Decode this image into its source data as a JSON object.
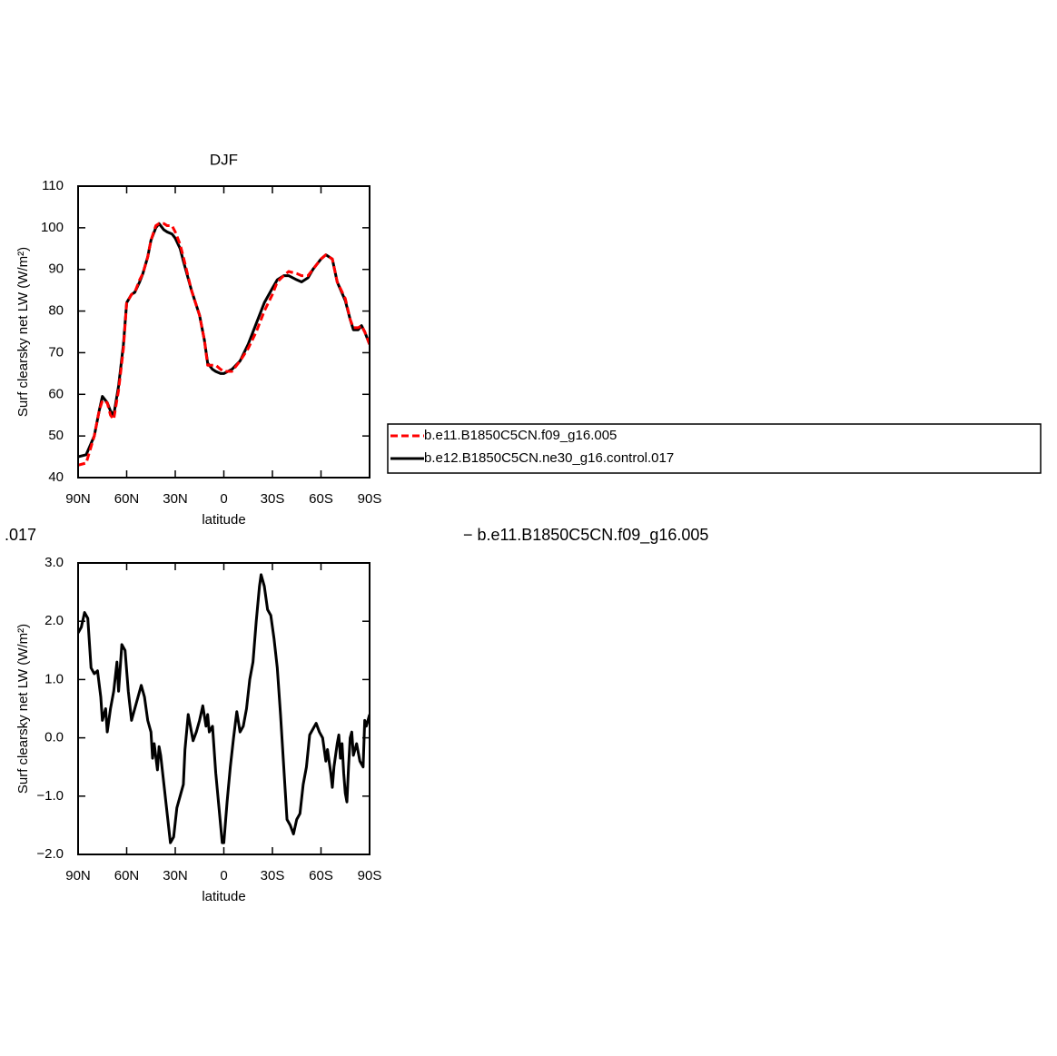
{
  "chart_data": [
    {
      "type": "line",
      "title": "DJF",
      "xlabel": "latitude",
      "ylabel": "Surf clearsky net LW (W/m²)",
      "xlim": [
        90,
        -90
      ],
      "ylim": [
        40,
        110
      ],
      "xticks": [
        {
          "value": 90,
          "label": "90N"
        },
        {
          "value": 60,
          "label": "60N"
        },
        {
          "value": 30,
          "label": "30N"
        },
        0,
        {
          "value": -30,
          "label": "30S"
        },
        {
          "value": -60,
          "label": "60S"
        },
        {
          "value": -90,
          "label": "90S"
        }
      ],
      "yticks": [
        40,
        50,
        60,
        70,
        80,
        90,
        100,
        110
      ],
      "legend_position": "right",
      "x": [
        90,
        85,
        80,
        77,
        75,
        72,
        70,
        68,
        65,
        62,
        60,
        57,
        55,
        52,
        50,
        47,
        45,
        42,
        40,
        37,
        35,
        32,
        30,
        27,
        25,
        20,
        15,
        12,
        10,
        7,
        5,
        2,
        0,
        -5,
        -10,
        -15,
        -20,
        -25,
        -30,
        -33,
        -37,
        -40,
        -45,
        -48,
        -52,
        -55,
        -60,
        -63,
        -67,
        -70,
        -75,
        -78,
        -80,
        -83,
        -85,
        -87,
        -90
      ],
      "series": [
        {
          "name": "b.e11.B1850C5CN.f09_g16.005",
          "color": "#ff0000",
          "dash": true,
          "values": [
            43,
            43.5,
            50,
            56,
            58.5,
            58,
            55,
            54,
            61,
            71,
            82,
            84,
            84.5,
            87.5,
            89,
            93,
            97,
            100.5,
            101,
            101,
            100.5,
            100.5,
            99,
            96,
            93,
            85,
            79,
            73,
            67,
            67,
            67,
            66,
            65.5,
            65.5,
            68,
            71,
            75,
            80,
            84,
            87,
            88.5,
            89.5,
            89,
            88.5,
            88.5,
            90,
            92.5,
            93.5,
            92.5,
            87,
            83,
            78,
            76,
            76,
            76.5,
            75,
            72
          ]
        },
        {
          "name": "b.e12.B1850C5CN.ne30_g16.control.017",
          "color": "#000000",
          "dash": false,
          "values": [
            45,
            45.5,
            50,
            56,
            59.5,
            58,
            56,
            55,
            62,
            72,
            82,
            84,
            84.5,
            87,
            89,
            93,
            97,
            100,
            101,
            99.5,
            99,
            98.5,
            97.5,
            95,
            92,
            85,
            79,
            73,
            67.5,
            66,
            65.5,
            65,
            65,
            66,
            68,
            72,
            77,
            82,
            85.5,
            87.5,
            88.5,
            88.5,
            87.5,
            87,
            88,
            90,
            92.5,
            93.5,
            92.5,
            87,
            82.5,
            78,
            75.5,
            75.5,
            76.5,
            75,
            72
          ]
        }
      ]
    },
    {
      "type": "line",
      "title_left": ".017",
      "title_right": "− b.e11.B1850C5CN.f09_g16.005",
      "xlabel": "latitude",
      "ylabel": "Surf clearsky net LW (W/m²)",
      "xlim": [
        90,
        -90
      ],
      "ylim": [
        -2.0,
        3.0
      ],
      "xticks": [
        {
          "value": 90,
          "label": "90N"
        },
        {
          "value": 60,
          "label": "60N"
        },
        {
          "value": 30,
          "label": "30N"
        },
        0,
        {
          "value": -30,
          "label": "30S"
        },
        {
          "value": -60,
          "label": "60S"
        },
        {
          "value": -90,
          "label": "90S"
        }
      ],
      "yticks": [
        {
          "value": -2,
          "label": "−2.0"
        },
        {
          "value": -1,
          "label": "−1.0"
        },
        {
          "value": 0,
          "label": "0.0"
        },
        {
          "value": 1,
          "label": "1.0"
        },
        {
          "value": 2,
          "label": "2.0"
        },
        {
          "value": 3,
          "label": "3.0"
        }
      ],
      "color": "#000000",
      "x": [
        90,
        88,
        86,
        84,
        82,
        80,
        78,
        76,
        75,
        73,
        72,
        70,
        68,
        66,
        65,
        63,
        61,
        59,
        57,
        55,
        53,
        51,
        49,
        47,
        45,
        44,
        43,
        41,
        40,
        39,
        37,
        35,
        33,
        31,
        29,
        27,
        25,
        24,
        22,
        20,
        19,
        17,
        15,
        13,
        11,
        10,
        9,
        7,
        5,
        3,
        1,
        0,
        -2,
        -4,
        -6,
        -8,
        -10,
        -12,
        -14,
        -16,
        -18,
        -20,
        -22,
        -23,
        -25,
        -27,
        -29,
        -31,
        -33,
        -35,
        -37,
        -39,
        -41,
        -43,
        -45,
        -47,
        -49,
        -51,
        -53,
        -55,
        -57,
        -59,
        -61,
        -62,
        -63,
        -64,
        -66,
        -67,
        -68,
        -70,
        -71,
        -72,
        -73,
        -74,
        -75,
        -76,
        -77,
        -78,
        -79,
        -80,
        -82,
        -84,
        -86,
        -87,
        -88,
        -90
      ],
      "values": [
        1.8,
        1.9,
        2.15,
        2.05,
        1.2,
        1.1,
        1.15,
        0.7,
        0.3,
        0.5,
        0.1,
        0.5,
        0.8,
        1.3,
        0.8,
        1.6,
        1.5,
        0.8,
        0.3,
        0.5,
        0.7,
        0.9,
        0.7,
        0.3,
        0.1,
        -0.35,
        -0.1,
        -0.55,
        -0.15,
        -0.3,
        -0.8,
        -1.3,
        -1.8,
        -1.7,
        -1.2,
        -1.0,
        -0.8,
        -0.2,
        0.4,
        0.1,
        -0.05,
        0.1,
        0.3,
        0.55,
        0.2,
        0.4,
        0.1,
        0.2,
        -0.6,
        -1.2,
        -1.8,
        -1.8,
        -1.1,
        -0.5,
        0.0,
        0.45,
        0.1,
        0.2,
        0.5,
        1.0,
        1.3,
        2.0,
        2.6,
        2.8,
        2.6,
        2.2,
        2.1,
        1.7,
        1.2,
        0.4,
        -0.5,
        -1.4,
        -1.5,
        -1.65,
        -1.4,
        -1.3,
        -0.8,
        -0.5,
        0.05,
        0.15,
        0.25,
        0.1,
        0.0,
        -0.2,
        -0.4,
        -0.2,
        -0.6,
        -0.85,
        -0.5,
        -0.1,
        0.05,
        -0.35,
        -0.1,
        -0.6,
        -0.95,
        -1.1,
        -0.5,
        0.0,
        0.1,
        -0.3,
        -0.1,
        -0.4,
        -0.5,
        0.3,
        0.2,
        0.4
      ]
    }
  ]
}
